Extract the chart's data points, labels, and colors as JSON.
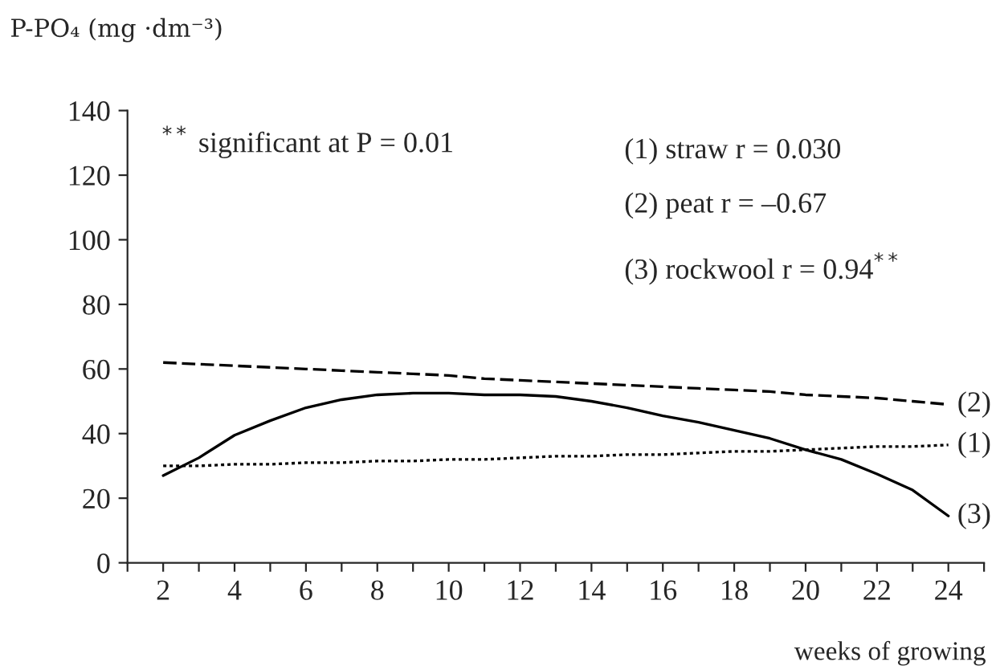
{
  "chart_data": {
    "type": "line",
    "ylabel": "P-PO₄ (mg ·dm⁻³)",
    "xlabel": "weeks of growing",
    "x": [
      2,
      3,
      4,
      5,
      6,
      7,
      8,
      9,
      10,
      11,
      12,
      13,
      14,
      15,
      16,
      17,
      18,
      19,
      20,
      21,
      22,
      23,
      24
    ],
    "series": [
      {
        "name": "(1)",
        "color": "#000000",
        "line_style": "dotted",
        "values": [
          30,
          30,
          30.5,
          30.5,
          31,
          31,
          31.5,
          31.5,
          32,
          32,
          32.5,
          33,
          33,
          33.5,
          33.5,
          34,
          34.5,
          34.5,
          35,
          35.5,
          36,
          36,
          36.5
        ]
      },
      {
        "name": "(2)",
        "color": "#000000",
        "line_style": "dashed",
        "values": [
          62,
          61.5,
          61,
          60.5,
          60,
          59.5,
          59,
          58.5,
          58,
          57,
          56.5,
          56,
          55.5,
          55,
          54.5,
          54,
          53.5,
          53,
          52,
          51.5,
          51,
          50,
          49
        ]
      },
      {
        "name": "(3)",
        "color": "#000000",
        "line_style": "solid",
        "values": [
          27,
          32.5,
          39.5,
          44,
          48,
          50.5,
          52,
          52.5,
          52.5,
          52,
          52,
          51.5,
          50,
          48,
          45.5,
          43.5,
          41,
          38.5,
          35,
          32,
          27.5,
          22.5,
          14.5
        ]
      }
    ],
    "annotations": [
      "$^{**}$ significant at P = 0.01",
      "(1) straw r = 0.030",
      "(2) peat r = –0.67",
      "(3) rockwool r = 0.94$^{**}$"
    ],
    "xlim": [
      1,
      25
    ],
    "xticks": [
      {
        "value": 1,
        "label": null
      },
      2,
      {
        "value": 3,
        "label": null
      },
      4,
      {
        "value": 5,
        "label": null
      },
      6,
      {
        "value": 7,
        "label": null
      },
      8,
      {
        "value": 9,
        "label": null
      },
      10,
      {
        "value": 11,
        "label": null
      },
      12,
      {
        "value": 13,
        "label": null
      },
      14,
      {
        "value": 15,
        "label": null
      },
      16,
      {
        "value": 17,
        "label": null
      },
      18,
      {
        "value": 19,
        "label": null
      },
      20,
      {
        "value": 21,
        "label": null
      },
      22,
      {
        "value": 23,
        "label": null
      },
      24,
      {
        "value": 25,
        "label": null
      }
    ],
    "ylim": [
      0,
      140
    ],
    "yticks": [
      0,
      20,
      40,
      60,
      80,
      100,
      120,
      140
    ],
    "grid": false,
    "legend": false,
    "marker": "none"
  }
}
